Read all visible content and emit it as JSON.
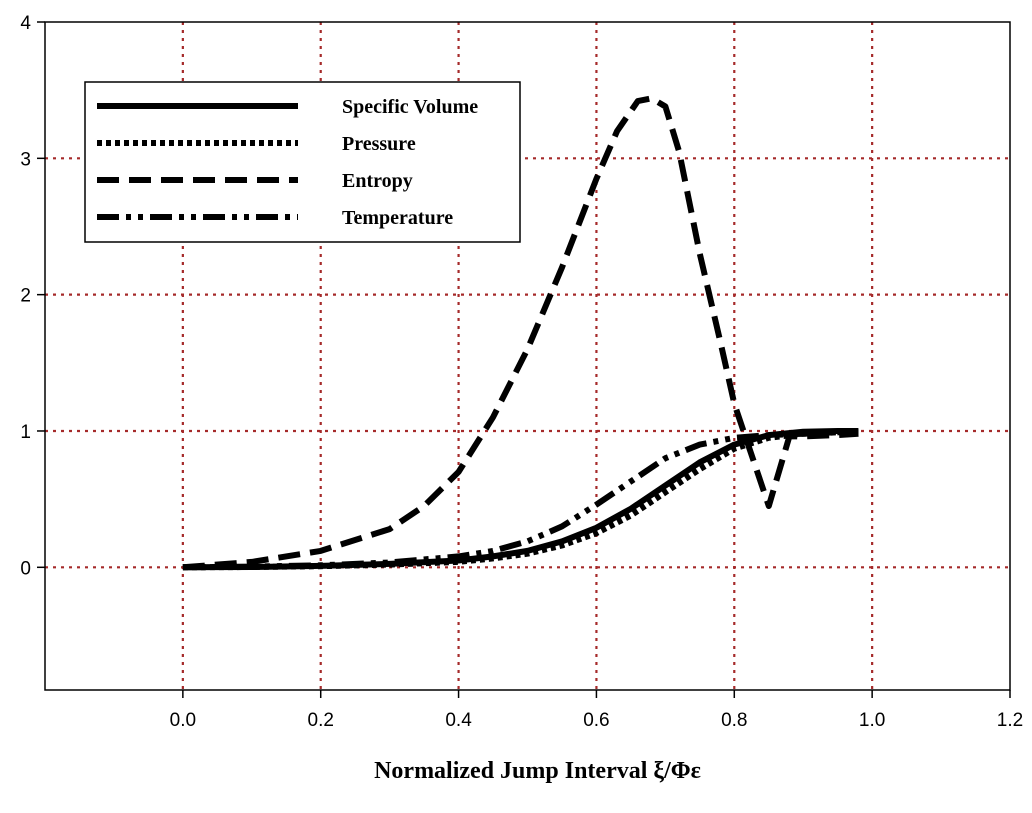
{
  "chart_data": {
    "type": "line",
    "title": "",
    "xlabel": "Normalized Jump Interval ξ/Φε",
    "ylabel": "",
    "xlim": [
      -0.2,
      1.2
    ],
    "ylim": [
      -0.9,
      4
    ],
    "xticks": [
      0.0,
      0.2,
      0.4,
      0.6,
      0.8,
      1.0,
      1.2
    ],
    "xtick_labels": [
      "0.0",
      "0.2",
      "0.4",
      "0.6",
      "0.8",
      "1.0",
      "1.2"
    ],
    "yticks": [
      0,
      1,
      2,
      3,
      4
    ],
    "ytick_labels": [
      "0",
      "1",
      "2",
      "3",
      "4"
    ],
    "grid": true,
    "grid_color": "#a52a2a",
    "legend_position": "top-left",
    "series": [
      {
        "name": "Specific Volume",
        "style": "solid",
        "x": [
          0.0,
          0.1,
          0.2,
          0.3,
          0.4,
          0.45,
          0.5,
          0.55,
          0.6,
          0.65,
          0.7,
          0.75,
          0.8,
          0.85,
          0.9,
          0.95,
          0.98
        ],
        "y": [
          0.0,
          0.002,
          0.01,
          0.025,
          0.05,
          0.08,
          0.12,
          0.19,
          0.29,
          0.43,
          0.6,
          0.77,
          0.9,
          0.97,
          0.995,
          1.0,
          1.0
        ]
      },
      {
        "name": "Pressure",
        "style": "dotted",
        "x": [
          0.0,
          0.1,
          0.2,
          0.3,
          0.4,
          0.45,
          0.5,
          0.55,
          0.6,
          0.65,
          0.7,
          0.75,
          0.8,
          0.85,
          0.9,
          0.95,
          0.98
        ],
        "y": [
          0.0,
          0.002,
          0.008,
          0.02,
          0.04,
          0.065,
          0.1,
          0.16,
          0.25,
          0.38,
          0.55,
          0.72,
          0.87,
          0.95,
          0.98,
          0.99,
          0.99
        ]
      },
      {
        "name": "Entropy",
        "style": "dashed",
        "x": [
          0.0,
          0.1,
          0.2,
          0.3,
          0.35,
          0.4,
          0.45,
          0.5,
          0.55,
          0.6,
          0.63,
          0.66,
          0.68,
          0.7,
          0.72,
          0.75,
          0.78,
          0.8,
          0.83,
          0.85,
          0.88,
          0.9,
          0.95,
          0.98
        ],
        "y": [
          0.0,
          0.04,
          0.12,
          0.28,
          0.45,
          0.7,
          1.1,
          1.6,
          2.2,
          2.85,
          3.2,
          3.42,
          3.44,
          3.38,
          3.05,
          2.3,
          1.65,
          1.2,
          0.75,
          0.45,
          0.96,
          0.96,
          0.97,
          0.98
        ]
      },
      {
        "name": "Temperature",
        "style": "dashdotdot",
        "x": [
          0.0,
          0.1,
          0.2,
          0.3,
          0.4,
          0.45,
          0.5,
          0.55,
          0.6,
          0.65,
          0.7,
          0.75,
          0.8,
          0.85,
          0.9,
          0.95,
          0.98
        ],
        "y": [
          0.0,
          0.005,
          0.015,
          0.035,
          0.08,
          0.12,
          0.19,
          0.3,
          0.46,
          0.63,
          0.8,
          0.9,
          0.95,
          0.97,
          0.98,
          0.99,
          0.99
        ]
      }
    ]
  }
}
